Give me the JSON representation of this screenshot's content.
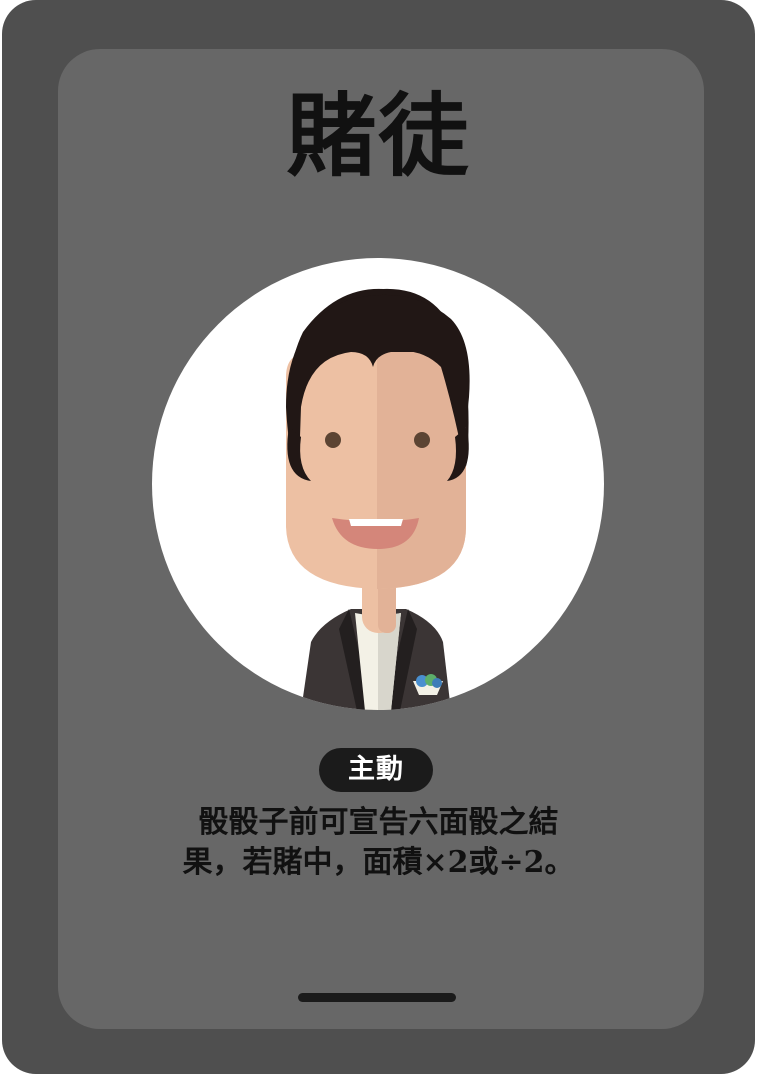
{
  "card": {
    "title": "賭徒",
    "ability_type": "主動",
    "ability_lines": [
      "骰骰子前可宣告六面骰之結",
      "果，若賭中，面積×2或÷2。"
    ]
  },
  "colors": {
    "frame": "#4f4f4f",
    "panel": "#676767",
    "badge": "#1b1b1b",
    "hair": "#211715",
    "skin_light": "#edc0a3",
    "skin_shade": "#e2b297"
  },
  "icons": {
    "portrait": "gambler-portrait-icon",
    "pocket_square": "pocket-square-icon"
  }
}
